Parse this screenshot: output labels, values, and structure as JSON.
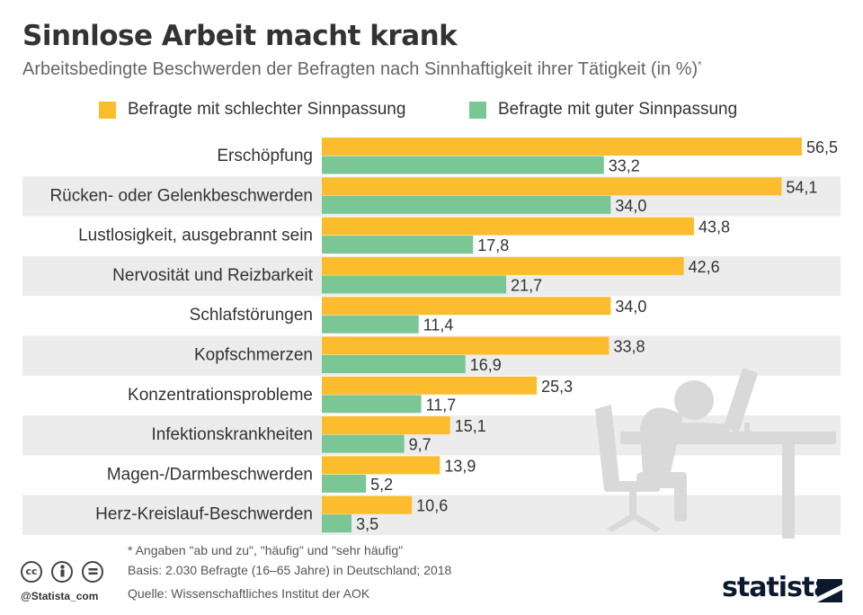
{
  "header": {
    "title": "Sinnlose Arbeit macht krank",
    "subtitle": "Arbeitsbedingte Beschwerden der Befragten nach Sinnhaftigkeit ihrer Tätigkeit (in %)",
    "subtitle_mark": "*"
  },
  "colors": {
    "series_bad": "#fbbd2e",
    "series_good": "#7ac795",
    "row_alt": "#ececec",
    "text": "#333333"
  },
  "chart_data": {
    "type": "bar",
    "orientation": "horizontal",
    "categories": [
      "Erschöpfung",
      "Rücken- oder Gelenkbeschwerden",
      "Lustlosigkeit, ausgebrannt sein",
      "Nervosität und Reizbarkeit",
      "Schlafstörungen",
      "Kopfschmerzen",
      "Konzentrationsprobleme",
      "Infektionskrankheiten",
      "Magen-/Darmbeschwerden",
      "Herz-Kreislauf-Beschwerden"
    ],
    "series": [
      {
        "name": "Befragte mit schlechter Sinnpassung",
        "values": [
          56.5,
          54.1,
          43.8,
          42.6,
          34.0,
          33.8,
          25.3,
          15.1,
          13.9,
          10.6
        ]
      },
      {
        "name": "Befragte mit guter Sinnpassung",
        "values": [
          33.2,
          34.0,
          17.8,
          21.7,
          11.4,
          16.9,
          11.7,
          9.7,
          5.2,
          3.5
        ]
      }
    ],
    "value_labels": [
      [
        "56,5",
        "54,1",
        "43,8",
        "42,6",
        "34,0",
        "33,8",
        "25,3",
        "15,1",
        "13,9",
        "10,6"
      ],
      [
        "33,2",
        "34,0",
        "17,8",
        "21,7",
        "11,4",
        "16,9",
        "11,7",
        "9,7",
        "5,2",
        "3,5"
      ]
    ],
    "xlim": [
      0,
      56.5
    ],
    "legend_position": "top",
    "grid": false
  },
  "footer": {
    "note": "* Angaben \"ab und zu\", \"häufig\" und \"sehr häufig\"",
    "basis": "Basis: 2.030 Befragte (16–65 Jahre) in Deutschland; 2018",
    "source": "Quelle: Wissenschaftliches Institut der AOK",
    "handle": "@Statista_com",
    "brand": "statista",
    "cc_icons": [
      "cc-icon",
      "by-icon",
      "nd-icon"
    ]
  }
}
